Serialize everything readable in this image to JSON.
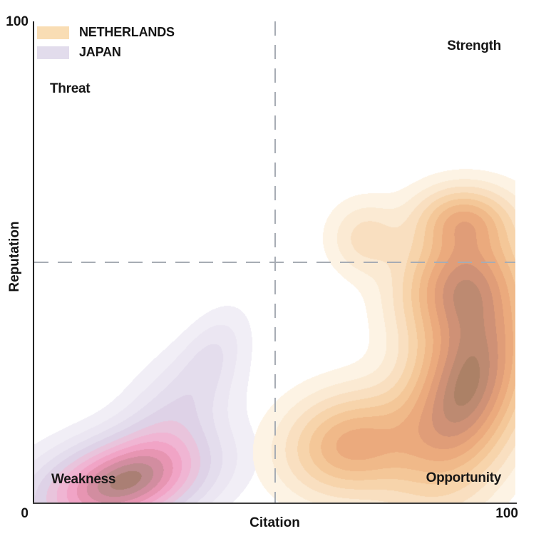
{
  "legend": {
    "position": "top-left",
    "items": [
      {
        "label": "NETHERLANDS",
        "color": "#f9ddb4"
      },
      {
        "label": "JAPAN",
        "color": "#e2dcec"
      }
    ]
  },
  "quadrants": {
    "top_left": "Threat",
    "top_right": "Strength",
    "bottom_left": "Weakness",
    "bottom_right": "Opportunity"
  },
  "axes": {
    "x": {
      "title": "Citation",
      "min_label": "0",
      "max_label": "100"
    },
    "y": {
      "title": "Reputation",
      "max_label": "100"
    },
    "origin_label": "0",
    "axis_color": "#2e2e2e"
  },
  "chart_data": {
    "type": "heatmap",
    "subtype": "bivariate-kde-filled-contours",
    "title": "",
    "xlabel": "Citation",
    "ylabel": "Reputation",
    "xlim": [
      0,
      100
    ],
    "ylim": [
      0,
      100
    ],
    "x_ticks": [
      0,
      100
    ],
    "y_ticks": [
      0,
      100
    ],
    "grid": false,
    "guides": {
      "vline_x": 50,
      "hline_y": 50,
      "style": "dashed",
      "color": "#a7acb4"
    },
    "levels_fraction_of_peak": [
      0.045,
      0.11,
      0.19,
      0.28,
      0.38,
      0.48,
      0.585,
      0.69,
      0.79,
      0.885,
      0.962
    ],
    "draw_order": [
      "JAPAN",
      "NETHERLANDS"
    ],
    "series": [
      {
        "name": "NETHERLANDS",
        "swatch": "#f9ddb4",
        "peak_estimate": {
          "citation": 90,
          "reputation": 25
        },
        "secondary_modes": [
          {
            "citation": 69,
            "reputation": 55
          },
          {
            "citation": 64,
            "reputation": 12
          }
        ],
        "palette": [
          "#fdf3e4",
          "#fbead3",
          "#f9dfc0",
          "#f7d4ab",
          "#f4c798",
          "#f0b989",
          "#ebaa7d",
          "#e09d78",
          "#cf9176",
          "#bd8a71",
          "#ac8166"
        ],
        "components": [
          {
            "x": 90,
            "y": 24,
            "sx": 9,
            "sy": 14,
            "rho": 0.4,
            "w": 1.0
          },
          {
            "x": 88,
            "y": 46,
            "sx": 8,
            "sy": 8,
            "rho": 0.15,
            "w": 0.38
          },
          {
            "x": 66,
            "y": 12,
            "sx": 9,
            "sy": 7,
            "rho": 0.1,
            "w": 0.34
          },
          {
            "x": 69,
            "y": 55,
            "sx": 5,
            "sy": 5,
            "rho": 0.0,
            "w": 0.05
          },
          {
            "x": 89,
            "y": 59,
            "sx": 6.5,
            "sy": 4.5,
            "rho": 0.0,
            "w": 0.12
          }
        ]
      },
      {
        "name": "JAPAN",
        "swatch": "#e2dcec",
        "peak_estimate": {
          "citation": 19,
          "reputation": 5
        },
        "secondary_modes": [
          {
            "citation": 40,
            "reputation": 39,
            "note": "tail tip"
          }
        ],
        "palette": [
          "#f1eef6",
          "#ebe6f2",
          "#e4dded",
          "#ded2e7",
          "#e9c4dc",
          "#f0b5d3",
          "#f1a4c6",
          "#e795b2",
          "#d28da0",
          "#bd8a8e",
          "#aa7f74"
        ],
        "components": [
          {
            "x": 18,
            "y": 4,
            "sx": 11.5,
            "sy": 6.5,
            "rho": 0.35,
            "w": 1.0
          },
          {
            "x": 29,
            "y": 18,
            "sx": 8,
            "sy": 9,
            "rho": 0.5,
            "w": 0.24
          },
          {
            "x": 37,
            "y": 31,
            "sx": 4.5,
            "sy": 6,
            "rho": 0.45,
            "w": 0.05
          }
        ]
      }
    ]
  }
}
